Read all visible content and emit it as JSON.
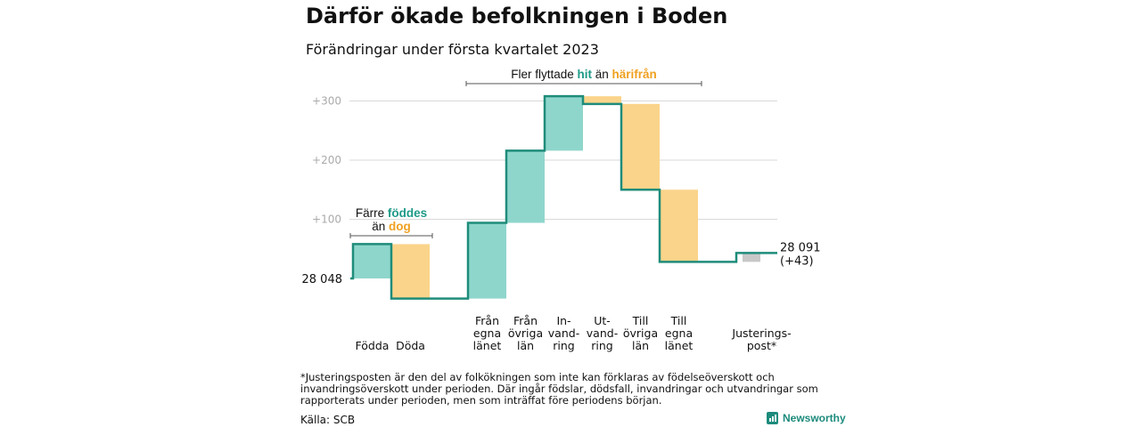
{
  "header": {
    "title": "Därför ökade befolkningen i Boden",
    "subtitle": "Förändringar under första kvartalet 2023"
  },
  "colors": {
    "increase": "#8ed6cc",
    "decrease": "#fad48a",
    "adjustment": "#c8c8c8",
    "line": "#1f8c7a",
    "hit_text": "#1f9a88",
    "dog_text": "#f0a020",
    "grid": "#d9d9d9",
    "tick": "#aaaaaa"
  },
  "annotations": {
    "fler_flyttade": [
      "Fler flyttade ",
      "hit",
      " än ",
      "härifrån"
    ],
    "farre_line1": [
      "Färre ",
      "föddes"
    ],
    "farre_line2": [
      "än ",
      "dog"
    ]
  },
  "chart_data": {
    "type": "waterfall",
    "title": "Därför ökade befolkningen i Boden",
    "subtitle": "Förändringar under första kvartalet 2023",
    "start_value": 28048,
    "start_label": "28 048",
    "end_value": 28091,
    "end_label": "28 091",
    "end_change_label": "(+43)",
    "y_axis": {
      "ticks": [
        100,
        200,
        300
      ],
      "tick_labels": [
        "+100",
        "+200",
        "+300"
      ],
      "ylim": [
        -40,
        320
      ],
      "grid": true
    },
    "categories": [
      {
        "label": [
          "Födda"
        ],
        "change": 58,
        "kind": "increase"
      },
      {
        "label": [
          "Döda"
        ],
        "change": -92,
        "kind": "decrease"
      },
      {
        "label": [
          "Från",
          "egna",
          "länet"
        ],
        "change": 128,
        "kind": "increase"
      },
      {
        "label": [
          "Från",
          "övriga",
          "län"
        ],
        "change": 122,
        "kind": "increase"
      },
      {
        "label": [
          "In-",
          "vand-",
          "ring"
        ],
        "change": 92,
        "kind": "increase"
      },
      {
        "label": [
          "Ut-",
          "vand-",
          "ring"
        ],
        "change": -13,
        "kind": "decrease"
      },
      {
        "label": [
          "Till",
          "övriga",
          "län"
        ],
        "change": -145,
        "kind": "decrease"
      },
      {
        "label": [
          "Till",
          "egna",
          "länet"
        ],
        "change": -122,
        "kind": "decrease"
      },
      {
        "label": [
          "Justerings-",
          "post*"
        ],
        "change": 15,
        "kind": "adjustment"
      }
    ]
  },
  "footnote": "*Justeringsposten är den del av folkökningen som inte kan förklaras av födelseöverskott och invandringsöverskott under perioden. Där ingår födslar, dödsfall, invandringar och utvandringar som rapporterats under perioden, men som inträffat före periodens början.",
  "source": "Källa: SCB",
  "brand": {
    "name": "Newsworthy",
    "icon": "newsworthy-logo-icon"
  }
}
